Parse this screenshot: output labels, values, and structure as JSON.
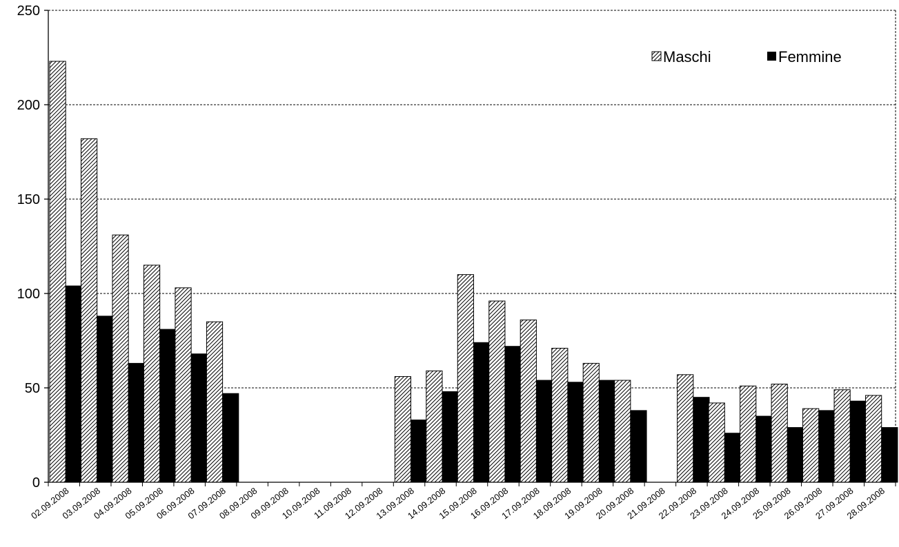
{
  "chart_data": {
    "type": "bar",
    "categories": [
      "02.09.2008",
      "03.09.2008",
      "04.09.2008",
      "05.09.2008",
      "06.09.2008",
      "07.09.2008",
      "08.09.2008",
      "09.09.2008",
      "10.09.2008",
      "11.09.2008",
      "12.09.2008",
      "13.09.2008",
      "14.09.2008",
      "15.09.2008",
      "16.09.2008",
      "17.09.2008",
      "18.09.2008",
      "19.09.2008",
      "20.09.2008",
      "21.09.2008",
      "22.09.2008",
      "23.09.2008",
      "24.09.2008",
      "25.09.2008",
      "26.09.2008",
      "27.09.2008",
      "28.09.2008"
    ],
    "series": [
      {
        "name": "Maschi",
        "pattern": "diagonal-hatch",
        "values": [
          223,
          182,
          131,
          115,
          103,
          85,
          0,
          0,
          0,
          0,
          0,
          56,
          59,
          110,
          96,
          86,
          71,
          63,
          54,
          0,
          57,
          42,
          51,
          52,
          39,
          49,
          46
        ]
      },
      {
        "name": "Femmine",
        "color": "#000000",
        "values": [
          104,
          88,
          63,
          81,
          68,
          47,
          0,
          0,
          0,
          0,
          0,
          33,
          48,
          74,
          72,
          54,
          53,
          54,
          38,
          0,
          45,
          26,
          35,
          29,
          38,
          43,
          29
        ]
      }
    ],
    "yticks": [
      "0",
      "50",
      "100",
      "150",
      "200",
      "250"
    ],
    "ylim": [
      0,
      250
    ],
    "grid": true,
    "legend_position": "top-right",
    "title": "",
    "xlabel": "",
    "ylabel": ""
  }
}
